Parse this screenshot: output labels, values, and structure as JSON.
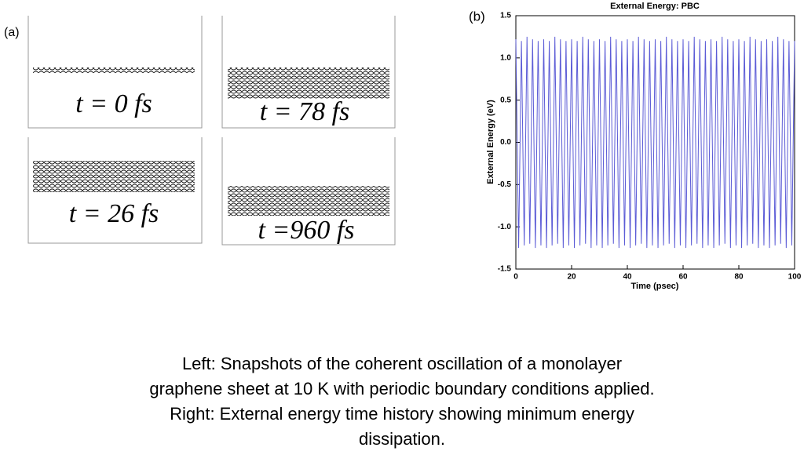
{
  "panel_label_a": "(a)",
  "panel_label_b": "(b)",
  "snapshots": [
    "t = 0 fs",
    "t = 78 fs",
    "t = 26 fs",
    "t =960 fs"
  ],
  "caption": [
    "Left:  Snapshots of the coherent oscillation of a monolayer",
    "graphene sheet at 10 K with periodic boundary conditions applied.",
    "Right:  External energy time history showing minimum energy",
    "dissipation."
  ],
  "chart_data": {
    "type": "line",
    "title": "External Energy: PBC",
    "x_label": "Time (psec)",
    "y_label": "External Energy (eV)",
    "color": "#5b5bd6",
    "x": [
      0,
      1,
      2,
      3,
      4,
      5,
      6,
      7,
      8,
      9,
      10,
      11,
      12,
      13,
      14,
      15,
      16,
      17,
      18,
      19,
      20,
      21,
      22,
      23,
      24,
      25,
      26,
      27,
      28,
      29,
      30,
      31,
      32,
      33,
      34,
      35,
      36,
      37,
      38,
      39,
      40,
      41,
      42,
      43,
      44,
      45,
      46,
      47,
      48,
      49,
      50,
      51,
      52,
      53,
      54,
      55,
      56,
      57,
      58,
      59,
      60,
      61,
      62,
      63,
      64,
      65,
      66,
      67,
      68,
      69,
      70,
      71,
      72,
      73,
      74,
      75,
      76,
      77,
      78,
      79,
      80,
      81,
      82,
      83,
      84,
      85,
      86,
      87,
      88,
      89,
      90,
      91,
      92,
      93,
      94,
      95,
      96,
      97,
      98,
      99,
      100
    ],
    "values": [
      1.22,
      -1.25,
      1.2,
      -1.22,
      1.25,
      -1.2,
      1.22,
      -1.25,
      1.2,
      -1.22,
      1.22,
      -1.25,
      1.2,
      -1.22,
      1.25,
      -1.2,
      1.22,
      -1.25,
      1.2,
      -1.22,
      1.22,
      -1.25,
      1.2,
      -1.22,
      1.25,
      -1.2,
      1.22,
      -1.25,
      1.2,
      -1.22,
      1.22,
      -1.25,
      1.2,
      -1.22,
      1.25,
      -1.2,
      1.22,
      -1.25,
      1.2,
      -1.22,
      1.22,
      -1.25,
      1.2,
      -1.22,
      1.25,
      -1.2,
      1.22,
      -1.25,
      1.2,
      -1.22,
      1.22,
      -1.25,
      1.2,
      -1.22,
      1.25,
      -1.2,
      1.22,
      -1.25,
      1.2,
      -1.22,
      1.22,
      -1.25,
      1.2,
      -1.22,
      1.25,
      -1.2,
      1.22,
      -1.25,
      1.2,
      -1.22,
      1.22,
      -1.25,
      1.2,
      -1.22,
      1.25,
      -1.2,
      1.22,
      -1.25,
      1.2,
      -1.22,
      1.22,
      -1.25,
      1.2,
      -1.22,
      1.25,
      -1.2,
      1.22,
      -1.25,
      1.2,
      -1.22,
      1.22,
      -1.25,
      1.2,
      -1.22,
      1.25,
      -1.2,
      1.22,
      -1.25,
      1.2,
      -1.22,
      1.2
    ],
    "xlim": [
      0,
      100
    ],
    "xticks": [
      0,
      20,
      40,
      60,
      80,
      100
    ],
    "ylim": [
      -1.5,
      1.5
    ],
    "yticks": [
      -1.5,
      {
        "value": -1,
        "label": "-1.0"
      },
      -0.5,
      {
        "value": 0,
        "label": "0.0"
      },
      0.5,
      {
        "value": 1,
        "label": "1.0"
      },
      1.5
    ]
  }
}
